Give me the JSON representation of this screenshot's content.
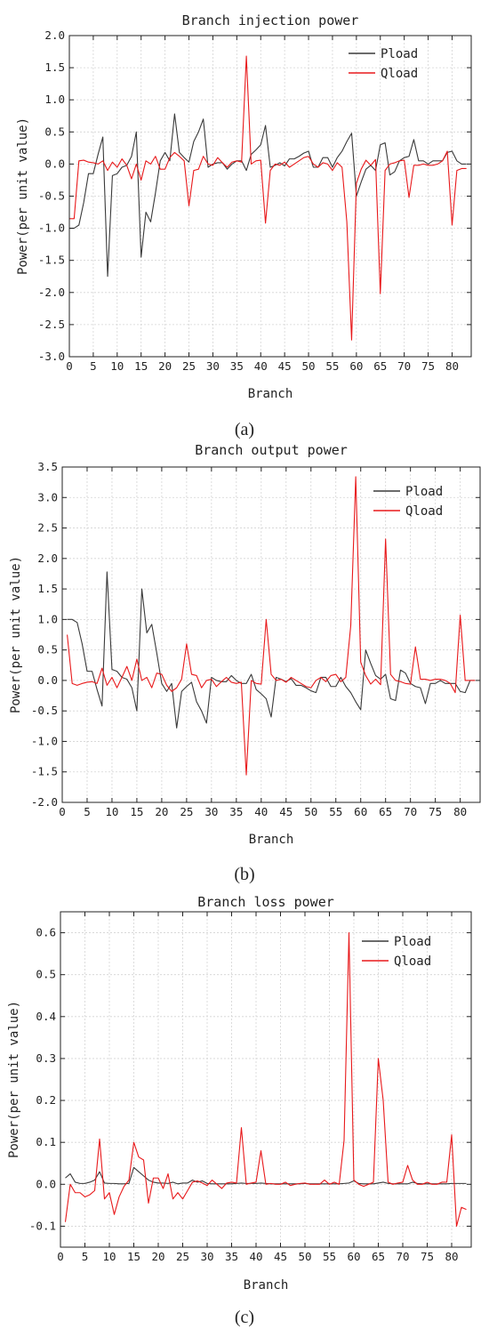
{
  "chart_data": [
    {
      "type": "line",
      "panel": "(a)",
      "title": "Branch injection power",
      "xlabel": "Branch",
      "ylabel": "Power(per unit value)",
      "xlim": [
        0,
        84
      ],
      "ylim": [
        -3.0,
        2.0
      ],
      "yticks": [
        "2.0",
        "1.5",
        "1.0",
        "0.5",
        "0.0",
        "-0.5",
        "-1.0",
        "-1.5",
        "-2.0",
        "-2.5",
        "-3.0"
      ],
      "xticks": [
        "0",
        "5",
        "10",
        "15",
        "20",
        "25",
        "30",
        "35",
        "40",
        "45",
        "50",
        "55",
        "60",
        "65",
        "70",
        "75",
        "80"
      ],
      "legend_position": "top-right",
      "grid": true,
      "x": [
        0,
        1,
        2,
        3,
        4,
        5,
        6,
        7,
        8,
        9,
        10,
        11,
        12,
        13,
        14,
        15,
        16,
        17,
        18,
        19,
        20,
        21,
        22,
        23,
        24,
        25,
        26,
        27,
        28,
        29,
        30,
        31,
        32,
        33,
        34,
        35,
        36,
        37,
        38,
        39,
        40,
        41,
        42,
        43,
        44,
        45,
        46,
        47,
        48,
        49,
        50,
        51,
        52,
        53,
        54,
        55,
        56,
        57,
        58,
        59,
        60,
        61,
        62,
        63,
        64,
        65,
        66,
        67,
        68,
        69,
        70,
        71,
        72,
        73,
        74,
        75,
        76,
        77,
        78,
        79,
        80,
        81,
        82,
        83
      ],
      "series": [
        {
          "name": "Pload",
          "color": "#3a3a3a",
          "values": [
            -1.0,
            -1.0,
            -0.95,
            -0.6,
            -0.15,
            -0.15,
            0.15,
            0.42,
            -1.75,
            -0.18,
            -0.15,
            -0.05,
            -0.02,
            0.12,
            0.5,
            -1.45,
            -0.75,
            -0.9,
            -0.45,
            0.05,
            0.18,
            0.05,
            0.78,
            0.18,
            0.1,
            0.03,
            0.35,
            0.5,
            0.7,
            -0.05,
            0.0,
            0.02,
            0.02,
            -0.08,
            0.0,
            0.05,
            0.05,
            -0.1,
            0.15,
            0.22,
            0.3,
            0.6,
            -0.05,
            -0.02,
            0.02,
            -0.03,
            0.08,
            0.08,
            0.12,
            0.17,
            0.2,
            -0.05,
            -0.05,
            0.1,
            0.1,
            -0.05,
            0.1,
            0.2,
            0.35,
            0.48,
            -0.5,
            -0.28,
            -0.08,
            -0.02,
            -0.1,
            0.3,
            0.33,
            -0.17,
            -0.12,
            0.05,
            0.1,
            0.12,
            0.38,
            0.05,
            0.05,
            0.0,
            0.05,
            0.05,
            0.05,
            0.18,
            0.2,
            0.05,
            0.0,
            0.0
          ]
        },
        {
          "name": "Qload",
          "color": "#e8191b",
          "values": [
            -0.85,
            -0.85,
            0.05,
            0.06,
            0.03,
            0.02,
            0.0,
            0.05,
            -0.1,
            0.03,
            -0.05,
            0.08,
            -0.02,
            -0.23,
            0.0,
            -0.25,
            0.05,
            0.0,
            0.12,
            -0.08,
            -0.08,
            0.1,
            0.18,
            0.12,
            0.05,
            -0.65,
            -0.1,
            -0.08,
            0.12,
            0.0,
            -0.02,
            0.1,
            0.02,
            -0.05,
            0.03,
            0.05,
            0.03,
            1.68,
            0.0,
            0.05,
            0.06,
            -0.92,
            -0.1,
            0.0,
            -0.02,
            0.03,
            -0.05,
            0.0,
            0.05,
            0.1,
            0.12,
            0.0,
            -0.05,
            0.02,
            0.0,
            -0.1,
            0.02,
            -0.05,
            -0.9,
            -2.74,
            -0.3,
            -0.08,
            0.06,
            -0.02,
            0.07,
            -2.02,
            -0.1,
            0.0,
            0.02,
            0.05,
            0.06,
            -0.52,
            -0.02,
            -0.02,
            0.0,
            -0.02,
            -0.02,
            0.0,
            0.05,
            0.2,
            -0.95,
            -0.1,
            -0.07,
            -0.07
          ]
        }
      ]
    },
    {
      "type": "line",
      "panel": "(b)",
      "title": "Branch output power",
      "xlabel": "Branch",
      "ylabel": "Power(per unit value)",
      "xlim": [
        0,
        84
      ],
      "ylim": [
        -2.0,
        3.5
      ],
      "yticks": [
        "3.5",
        "3.0",
        "2.5",
        "2.0",
        "1.5",
        "1.0",
        "0.5",
        "0.0",
        "-0.5",
        "-1.0",
        "-1.5",
        "-2.0"
      ],
      "xticks": [
        "0",
        "5",
        "10",
        "15",
        "20",
        "25",
        "30",
        "35",
        "40",
        "45",
        "50",
        "55",
        "60",
        "65",
        "70",
        "75",
        "80"
      ],
      "legend_position": "top-right",
      "grid": true,
      "x": [
        1,
        2,
        3,
        4,
        5,
        6,
        7,
        8,
        9,
        10,
        11,
        12,
        13,
        14,
        15,
        16,
        17,
        18,
        19,
        20,
        21,
        22,
        23,
        24,
        25,
        26,
        27,
        28,
        29,
        30,
        31,
        32,
        33,
        34,
        35,
        36,
        37,
        38,
        39,
        40,
        41,
        42,
        43,
        44,
        45,
        46,
        47,
        48,
        49,
        50,
        51,
        52,
        53,
        54,
        55,
        56,
        57,
        58,
        59,
        60,
        61,
        62,
        63,
        64,
        65,
        66,
        67,
        68,
        69,
        70,
        71,
        72,
        73,
        74,
        75,
        76,
        77,
        78,
        79,
        80,
        81,
        82,
        83
      ],
      "series": [
        {
          "name": "Pload",
          "color": "#3a3a3a",
          "values": [
            1.0,
            1.0,
            0.95,
            0.6,
            0.15,
            0.15,
            -0.15,
            -0.42,
            1.78,
            0.18,
            0.15,
            0.05,
            0.02,
            -0.12,
            -0.5,
            1.5,
            0.78,
            0.92,
            0.45,
            -0.05,
            -0.18,
            -0.05,
            -0.78,
            -0.18,
            -0.1,
            -0.03,
            -0.35,
            -0.5,
            -0.7,
            0.05,
            0.0,
            -0.02,
            -0.02,
            0.08,
            0.0,
            -0.05,
            -0.05,
            0.1,
            -0.15,
            -0.22,
            -0.3,
            -0.6,
            0.05,
            0.02,
            -0.02,
            0.03,
            -0.08,
            -0.08,
            -0.12,
            -0.17,
            -0.2,
            0.05,
            0.05,
            -0.1,
            -0.1,
            0.05,
            -0.1,
            -0.2,
            -0.35,
            -0.48,
            0.5,
            0.28,
            0.08,
            0.02,
            0.1,
            -0.3,
            -0.33,
            0.17,
            0.12,
            -0.05,
            -0.1,
            -0.12,
            -0.38,
            -0.05,
            -0.05,
            0.0,
            -0.05,
            -0.05,
            -0.05,
            -0.18,
            -0.2,
            0.0,
            0.0
          ]
        },
        {
          "name": "Qload",
          "color": "#e8191b",
          "values": [
            0.75,
            -0.05,
            -0.08,
            -0.05,
            -0.03,
            -0.02,
            -0.05,
            0.2,
            -0.08,
            0.05,
            -0.12,
            0.05,
            0.23,
            0.0,
            0.35,
            0.0,
            0.05,
            -0.12,
            0.12,
            0.1,
            -0.08,
            -0.18,
            -0.12,
            0.02,
            0.6,
            0.1,
            0.08,
            -0.12,
            0.0,
            0.02,
            -0.1,
            -0.02,
            0.05,
            -0.03,
            -0.05,
            -0.03,
            -1.55,
            0.0,
            -0.05,
            -0.06,
            1.0,
            0.1,
            0.0,
            0.02,
            -0.03,
            0.05,
            0.0,
            -0.05,
            -0.1,
            -0.12,
            0.0,
            0.05,
            -0.02,
            0.08,
            0.1,
            -0.02,
            0.05,
            0.9,
            3.34,
            0.3,
            0.08,
            -0.06,
            0.02,
            -0.07,
            2.32,
            0.1,
            0.0,
            -0.02,
            -0.05,
            -0.06,
            0.55,
            0.02,
            0.02,
            0.0,
            0.02,
            0.02,
            0.0,
            -0.05,
            -0.2,
            1.07,
            0.0,
            0.0,
            0.0
          ]
        }
      ]
    },
    {
      "type": "line",
      "panel": "(c)",
      "title": "Branch loss power",
      "xlabel": "Branch",
      "ylabel": "Power(per unit value)",
      "xlim": [
        0,
        84
      ],
      "ylim": [
        -0.15,
        0.65
      ],
      "yticks": [
        "0.6",
        "0.5",
        "0.4",
        "0.3",
        "0.2",
        "0.1",
        "0.0",
        "-0.1"
      ],
      "xticks": [
        "0",
        "5",
        "10",
        "15",
        "20",
        "25",
        "30",
        "35",
        "40",
        "45",
        "50",
        "55",
        "60",
        "65",
        "70",
        "75",
        "80"
      ],
      "legend_position": "top-right",
      "grid": true,
      "x": [
        1,
        2,
        3,
        4,
        5,
        6,
        7,
        8,
        9,
        10,
        11,
        12,
        13,
        14,
        15,
        16,
        17,
        18,
        19,
        20,
        21,
        22,
        23,
        24,
        25,
        26,
        27,
        28,
        29,
        30,
        31,
        32,
        33,
        34,
        35,
        36,
        37,
        38,
        39,
        40,
        41,
        42,
        43,
        44,
        45,
        46,
        47,
        48,
        49,
        50,
        51,
        52,
        53,
        54,
        55,
        56,
        57,
        58,
        59,
        60,
        61,
        62,
        63,
        64,
        65,
        66,
        67,
        68,
        69,
        70,
        71,
        72,
        73,
        74,
        75,
        76,
        77,
        78,
        79,
        80,
        81,
        82,
        83
      ],
      "series": [
        {
          "name": "Pload",
          "color": "#3a3a3a",
          "values": [
            0.015,
            0.025,
            0.005,
            0.002,
            0.002,
            0.005,
            0.01,
            0.03,
            0.003,
            0.002,
            0.002,
            0.001,
            0.001,
            0.002,
            0.04,
            0.03,
            0.02,
            0.01,
            0.005,
            0.003,
            0.003,
            0.002,
            0.005,
            0.001,
            0.003,
            0.003,
            0.01,
            0.005,
            0.008,
            0.002,
            0.001,
            0.001,
            0.001,
            0.001,
            0.001,
            0.002,
            0.003,
            0.002,
            0.002,
            0.002,
            0.003,
            0.002,
            0.001,
            0.001,
            0.001,
            0.001,
            0.001,
            0.001,
            0.001,
            0.002,
            0.001,
            0.001,
            0.001,
            0.001,
            0.001,
            0.001,
            0.001,
            0.002,
            0.003,
            0.008,
            0.002,
            0.001,
            0.001,
            0.001,
            0.003,
            0.005,
            0.002,
            0.001,
            0.001,
            0.001,
            0.001,
            0.005,
            0.002,
            0.001,
            0.001,
            0.001,
            0.001,
            0.001,
            0.001,
            0.002,
            0.002,
            0.002,
            0.002
          ]
        },
        {
          "name": "Qload",
          "color": "#e8191b",
          "values": [
            -0.09,
            0.0,
            -0.02,
            -0.02,
            -0.03,
            -0.025,
            -0.015,
            0.108,
            -0.035,
            -0.02,
            -0.072,
            -0.03,
            -0.005,
            0.01,
            0.1,
            0.065,
            0.058,
            -0.045,
            0.015,
            0.015,
            -0.01,
            0.025,
            -0.035,
            -0.02,
            -0.035,
            -0.015,
            0.005,
            0.008,
            0.003,
            -0.003,
            0.01,
            0.0,
            -0.01,
            0.003,
            0.005,
            0.003,
            0.135,
            0.0,
            0.003,
            0.005,
            0.08,
            0.0,
            0.002,
            0.0,
            0.0,
            0.005,
            -0.003,
            0.0,
            0.002,
            0.003,
            0.0,
            0.0,
            0.0,
            0.01,
            0.0,
            0.005,
            0.0,
            0.105,
            0.6,
            0.01,
            0.0,
            -0.005,
            0.0,
            0.005,
            0.3,
            0.2,
            0.005,
            0.0,
            0.003,
            0.005,
            0.045,
            0.01,
            0.0,
            0.0,
            0.005,
            0.0,
            0.0,
            0.005,
            0.005,
            0.118,
            -0.1,
            -0.055,
            -0.06
          ]
        }
      ]
    }
  ],
  "panels": {
    "a": {
      "caption": "(a)",
      "caption_main": "a"
    },
    "b": {
      "caption": "(b)",
      "caption_main": "b"
    },
    "c": {
      "caption": "(c)",
      "caption_main": "c"
    }
  },
  "colors": {
    "grid": "#d4d4d4",
    "axis": "#222222",
    "pload": "#3a3a3a",
    "qload": "#e8191b"
  }
}
